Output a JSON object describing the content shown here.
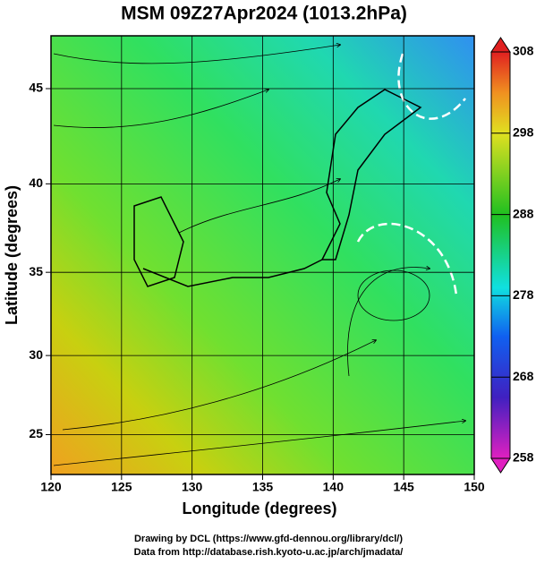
{
  "chart_data": {
    "type": "map",
    "title": "MSM 09Z27Apr2024 (1013.2hPa)",
    "xlabel": "Longitude (degrees)",
    "ylabel": "Latitude  (degrees)",
    "xlim": [
      120,
      150
    ],
    "ylim": [
      22.4,
      47.6
    ],
    "xticks": [
      120,
      125,
      130,
      135,
      140,
      145,
      150
    ],
    "yticks": [
      25,
      30,
      35,
      40,
      45
    ],
    "grid": true,
    "colorbar": {
      "lim": [
        258,
        308
      ],
      "ticks": [
        258,
        268,
        278,
        288,
        298,
        308
      ]
    },
    "credits": [
      "Drawing by DCL (https://www.gfd-dennou.org/library/dcl/)",
      "Data from http://database.rish.kyoto-u.ac.jp/arch/jmadata/"
    ]
  }
}
